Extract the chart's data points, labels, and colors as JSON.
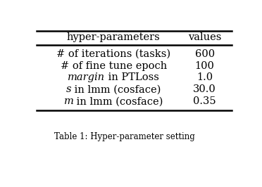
{
  "col_headers": [
    "hyper-parameters",
    "values"
  ],
  "row_params": [
    [
      [
        "# of iterations (tasks)",
        "normal"
      ]
    ],
    [
      [
        "# of fine tune epoch",
        "normal"
      ]
    ],
    [
      [
        "margin",
        "italic"
      ],
      [
        " in PTLoss",
        "normal"
      ]
    ],
    [
      [
        "s",
        "italic"
      ],
      [
        " in lmm (cosface)",
        "normal"
      ]
    ],
    [
      [
        "m",
        "italic"
      ],
      [
        " in lmm (cosface)",
        "normal"
      ]
    ]
  ],
  "row_values": [
    "600",
    "100",
    "1.0",
    "30.0",
    "0.35"
  ],
  "header_fontsize": 10.5,
  "row_fontsize": 10.5,
  "caption_fontsize": 8.5,
  "caption": "Table 1: Hyper-parameter setting",
  "bg_color": "white",
  "line_color": "black",
  "text_color": "black"
}
